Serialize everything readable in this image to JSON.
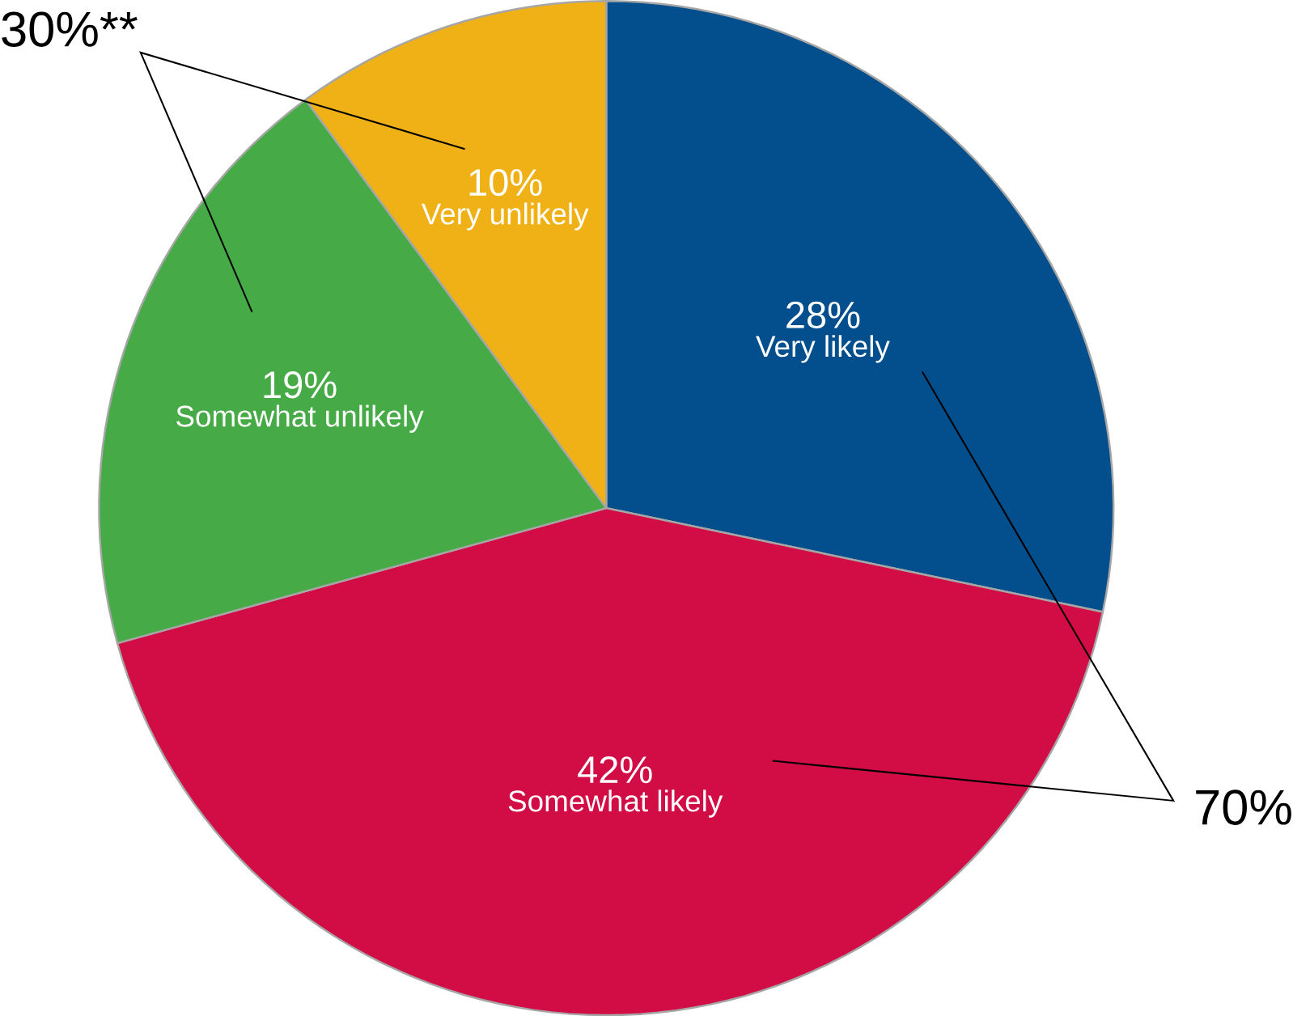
{
  "chart_data": {
    "type": "pie",
    "categories": [
      "Very likely",
      "Somewhat likely",
      "Somewhat unlikely",
      "Very unlikely"
    ],
    "values": [
      28,
      42,
      19,
      10
    ],
    "value_labels": [
      "28%",
      "42%",
      "19%",
      "10%"
    ],
    "colors": [
      "#034e8c",
      "#d20d45",
      "#46ab46",
      "#f0b116"
    ],
    "annotations": [
      "30%**",
      "70%"
    ]
  }
}
